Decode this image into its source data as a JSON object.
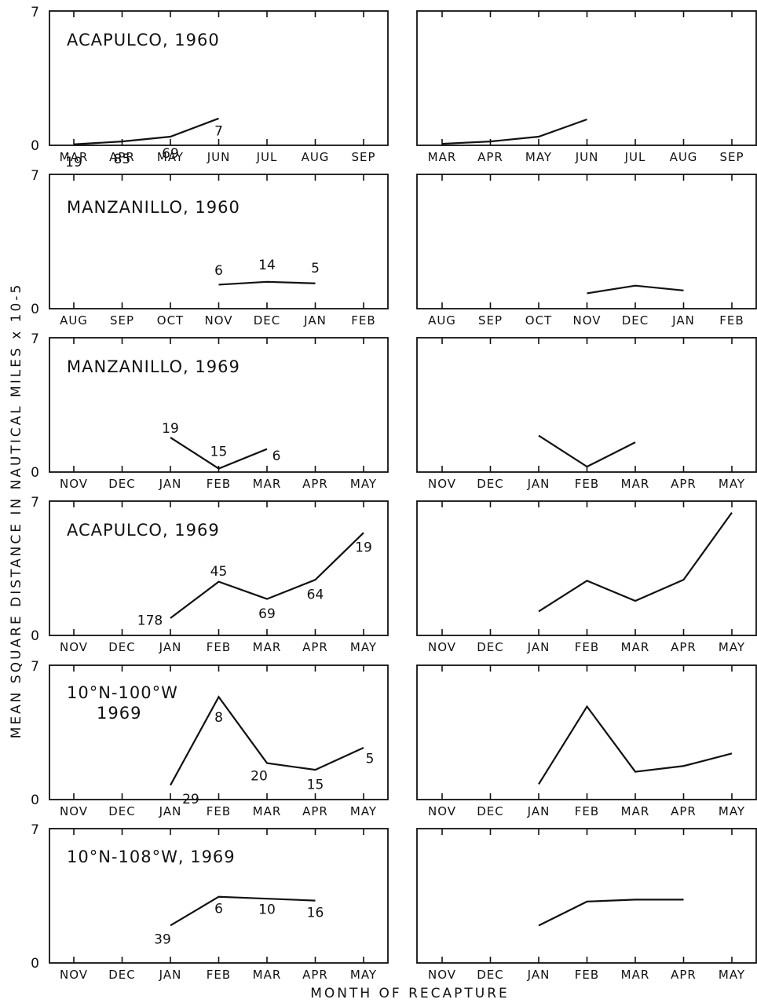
{
  "axis": {
    "y_title": "MEAN SQUARE DISTANCE IN NAUTICAL MILES x 10-5",
    "x_title": "MONTH OF RECAPTURE",
    "y_min_label": "0",
    "y_max_label": "7"
  },
  "chart_data": [
    {
      "type": "line",
      "title": [
        "ACAPULCO, 1960"
      ],
      "categories": [
        "MAR",
        "APR",
        "MAY",
        "JUN",
        "JUL",
        "AUG",
        "SEP"
      ],
      "ylim": [
        0,
        7
      ],
      "left": {
        "values": [
          0.05,
          0.2,
          0.45,
          1.4
        ],
        "labels": [
          {
            "text": "19",
            "index": 0,
            "dy": -0.9
          },
          {
            "text": "85",
            "index": 1,
            "dy": -0.9
          },
          {
            "text": "69",
            "index": 2,
            "dy": -0.85
          },
          {
            "text": "7",
            "index": 3,
            "dy": -0.65
          }
        ]
      },
      "right": {
        "values": [
          0.08,
          0.2,
          0.45,
          1.35
        ]
      }
    },
    {
      "type": "line",
      "title": [
        "MANZANILLO, 1960"
      ],
      "categories": [
        "AUG",
        "SEP",
        "OCT",
        "NOV",
        "DEC",
        "JAN",
        "FEB"
      ],
      "ylim": [
        0,
        7
      ],
      "left": {
        "values": [
          null,
          null,
          null,
          1.25,
          1.4,
          1.32
        ],
        "labels": [
          {
            "text": "6",
            "index": 3,
            "dy": 0.75
          },
          {
            "text": "14",
            "index": 4,
            "dy": 0.9
          },
          {
            "text": "5",
            "index": 5,
            "dy": 0.8
          }
        ]
      },
      "right": {
        "values": [
          null,
          null,
          null,
          0.8,
          1.2,
          0.95
        ]
      }
    },
    {
      "type": "line",
      "title": [
        "MANZANILLO, 1969"
      ],
      "categories": [
        "NOV",
        "DEC",
        "JAN",
        "FEB",
        "MAR",
        "APR",
        "MAY"
      ],
      "ylim": [
        0,
        7
      ],
      "left": {
        "values": [
          null,
          null,
          1.8,
          0.18,
          1.2
        ],
        "labels": [
          {
            "text": "19",
            "index": 2,
            "dy": 0.5
          },
          {
            "text": "15",
            "index": 3,
            "dy": 0.9
          },
          {
            "text": "6",
            "index": 4,
            "dy": -0.35,
            "dx": 12
          }
        ]
      },
      "right": {
        "values": [
          null,
          null,
          1.9,
          0.28,
          1.55
        ]
      }
    },
    {
      "type": "line",
      "title": [
        "ACAPULCO, 1969"
      ],
      "categories": [
        "NOV",
        "DEC",
        "JAN",
        "FEB",
        "MAR",
        "APR",
        "MAY"
      ],
      "ylim": [
        0,
        7
      ],
      "left": {
        "values": [
          null,
          null,
          0.9,
          2.8,
          1.9,
          2.9,
          5.35
        ],
        "labels": [
          {
            "text": "178",
            "index": 2,
            "dy": -0.1,
            "dx": -26
          },
          {
            "text": "45",
            "index": 3,
            "dy": 0.55
          },
          {
            "text": "69",
            "index": 4,
            "dy": -0.75
          },
          {
            "text": "64",
            "index": 5,
            "dy": -0.75
          },
          {
            "text": "19",
            "index": 6,
            "dy": -0.75
          }
        ]
      },
      "right": {
        "values": [
          null,
          null,
          1.25,
          2.85,
          1.8,
          2.9,
          6.4
        ]
      }
    },
    {
      "type": "line",
      "title": [
        "10°N-100°W",
        "1969"
      ],
      "categories": [
        "NOV",
        "DEC",
        "JAN",
        "FEB",
        "MAR",
        "APR",
        "MAY"
      ],
      "ylim": [
        0,
        7
      ],
      "left": {
        "values": [
          null,
          null,
          0.75,
          5.35,
          1.9,
          1.55,
          2.7
        ],
        "labels": [
          {
            "text": "29",
            "index": 2,
            "dy": -0.7,
            "dx": 26
          },
          {
            "text": "8",
            "index": 3,
            "dy": -1.05
          },
          {
            "text": "20",
            "index": 4,
            "dy": -0.65,
            "dx": -10
          },
          {
            "text": "15",
            "index": 5,
            "dy": -0.75
          },
          {
            "text": "5",
            "index": 6,
            "dy": -0.55,
            "dx": 8
          }
        ]
      },
      "right": {
        "values": [
          null,
          null,
          0.8,
          4.85,
          1.45,
          1.75,
          2.4
        ]
      }
    },
    {
      "type": "line",
      "title": [
        "10°N-108°W, 1969"
      ],
      "categories": [
        "NOV",
        "DEC",
        "JAN",
        "FEB",
        "MAR",
        "APR",
        "MAY"
      ],
      "ylim": [
        0,
        7
      ],
      "left": {
        "values": [
          null,
          null,
          1.95,
          3.45,
          3.35,
          3.25
        ],
        "labels": [
          {
            "text": "39",
            "index": 2,
            "dy": -0.7,
            "dx": -10
          },
          {
            "text": "6",
            "index": 3,
            "dy": -0.6
          },
          {
            "text": "10",
            "index": 4,
            "dy": -0.55
          },
          {
            "text": "16",
            "index": 5,
            "dy": -0.6
          }
        ]
      },
      "right": {
        "values": [
          null,
          null,
          1.95,
          3.2,
          3.3,
          3.3
        ]
      }
    }
  ]
}
